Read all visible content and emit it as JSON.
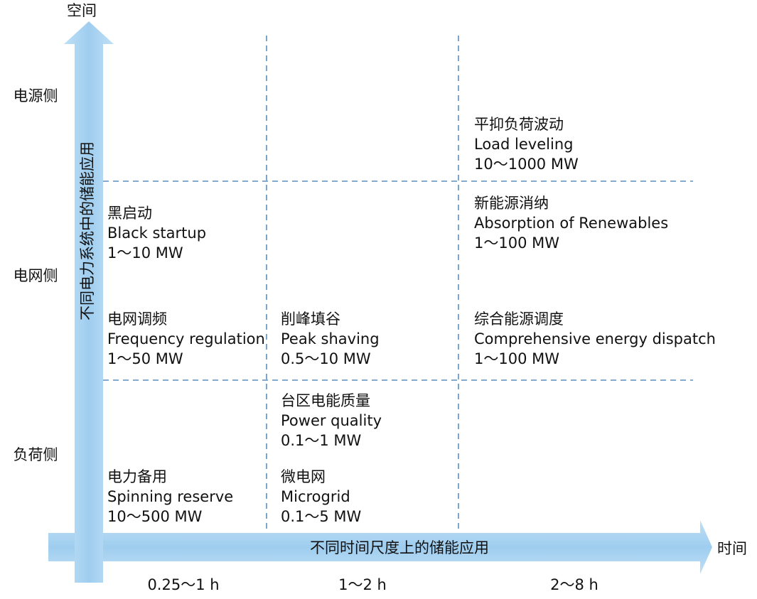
{
  "axes": {
    "y_title": "空间",
    "x_title": "时间",
    "y_arrow_label": "不同电力系统中的储能应用",
    "x_arrow_label": "不同时间尺度上的储能应用",
    "y_levels": [
      "电源侧",
      "电网侧",
      "负荷侧"
    ],
    "x_levels": [
      "0.25～1 h",
      "1～2 h",
      "2～8 h"
    ]
  },
  "cells": [
    {
      "title": "平抑负荷波动",
      "label": "Load leveling",
      "range": "10～1000 MW"
    },
    {
      "title": "新能源消纳",
      "label": "Absorption of Renewables",
      "range": "1～100 MW"
    },
    {
      "title": "黑启动",
      "label": "Black startup",
      "range": "1～10 MW"
    },
    {
      "title": "电网调频",
      "label": "Frequency regulation",
      "range": "1～50 MW"
    },
    {
      "title": "削峰填谷",
      "label": "Peak shaving",
      "range": "0.5～10 MW"
    },
    {
      "title": "综合能源调度",
      "label": "Comprehensive energy dispatch",
      "range": "1～100 MW"
    },
    {
      "title": "台区电能质量",
      "label": "Power quality",
      "range": "0.1～1 MW"
    },
    {
      "title": "电力备用",
      "label": "Spinning reserve",
      "range": "10～500 MW"
    },
    {
      "title": "微电网",
      "label": "Microgrid",
      "range": "0.1～5 MW"
    }
  ]
}
